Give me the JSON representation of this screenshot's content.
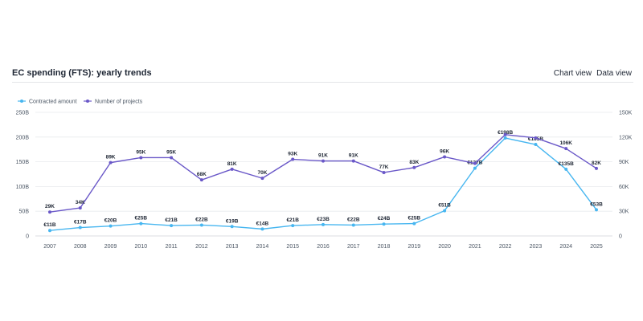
{
  "header": {
    "title": "EC spending (FTS): yearly trends",
    "views": [
      "Chart view",
      "Data view"
    ]
  },
  "colors": {
    "amount": "#47b6f0",
    "projects": "#6a58c8",
    "grid": "#e8eaed"
  },
  "chart_data": {
    "type": "line",
    "categories": [
      "2007",
      "2008",
      "2009",
      "2010",
      "2011",
      "2012",
      "2013",
      "2014",
      "2015",
      "2016",
      "2017",
      "2018",
      "2019",
      "2020",
      "2021",
      "2022",
      "2023",
      "2024",
      "2025"
    ],
    "series": [
      {
        "name": "Contracted amount",
        "axis": "left",
        "values": [
          11,
          17,
          20,
          25,
          21,
          22,
          19,
          14,
          21,
          23,
          22,
          24,
          25,
          51,
          137,
          198,
          185,
          135,
          53
        ],
        "labels": [
          "€11B",
          "€17B",
          "€20B",
          "€25B",
          "€21B",
          "€22B",
          "€19B",
          "€14B",
          "€21B",
          "€23B",
          "€22B",
          "€24B",
          "€25B",
          "€51B",
          "€137B",
          "€198B",
          "€185B",
          "€135B",
          "€53B"
        ]
      },
      {
        "name": "Number of projects",
        "axis": "right",
        "values": [
          29,
          34,
          89,
          95,
          95,
          68,
          81,
          70,
          93,
          91,
          91,
          77,
          83,
          96,
          88,
          123,
          119,
          106,
          82
        ],
        "labels": [
          "29K",
          "34K",
          "89K",
          "95K",
          "95K",
          "68K",
          "81K",
          "70K",
          "93K",
          "91K",
          "91K",
          "77K",
          "83K",
          "96K",
          null,
          null,
          null,
          "106K",
          "82K"
        ]
      }
    ],
    "y_left": {
      "ticks": [
        "0",
        "50B",
        "100B",
        "150B",
        "200B",
        "250B"
      ],
      "ylim": [
        0,
        250
      ]
    },
    "y_right": {
      "ticks": [
        "0",
        "30K",
        "60K",
        "90K",
        "120K",
        "150K"
      ],
      "ylim": [
        0,
        150
      ]
    },
    "legend": "top-left",
    "grid": true
  }
}
